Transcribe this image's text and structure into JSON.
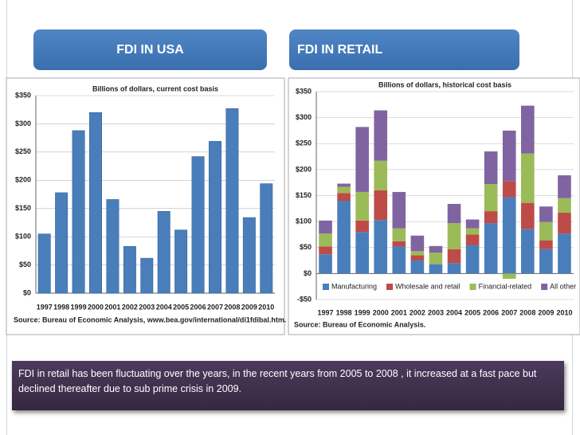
{
  "chart_data": [
    {
      "type": "bar",
      "title": "FDI IN USA",
      "subtitle": "Billions of dollars, current cost basis",
      "source": "Source: Bureau of Economic Analysis, www.bea.gov/international/di1fdibal.htm.",
      "categories": [
        "1997",
        "1998",
        "1999",
        "2000",
        "2001",
        "2002",
        "2003",
        "2004",
        "2005",
        "2006",
        "2007",
        "2008",
        "2009",
        "2010"
      ],
      "values": [
        105,
        178,
        288,
        320,
        166,
        83,
        62,
        145,
        112,
        242,
        269,
        327,
        134,
        194
      ],
      "color": "#4a7ebb",
      "ylim": [
        0,
        350
      ],
      "yticks": [
        {
          "value": 0,
          "label": "$0"
        },
        {
          "value": 50,
          "label": "$50"
        },
        {
          "value": 100,
          "label": "$100"
        },
        {
          "value": 150,
          "label": "$150"
        },
        {
          "value": 200,
          "label": "$200"
        },
        {
          "value": 250,
          "label": "$250"
        },
        {
          "value": 300,
          "label": "$300"
        },
        {
          "value": 350,
          "label": "$350"
        }
      ],
      "grid": true
    },
    {
      "type": "stacked_bar",
      "title": "FDI IN RETAIL",
      "subtitle": "Billions of dollars, historical cost basis",
      "source": "Source: Bureau of Economic Analysis.",
      "categories": [
        "1997",
        "1998",
        "1999",
        "2000",
        "2001",
        "2002",
        "2003",
        "2004",
        "2005",
        "2006",
        "2007",
        "2008",
        "2009",
        "2010"
      ],
      "series": [
        {
          "name": "Manufacturing",
          "color": "#4a7ebb",
          "values": [
            37,
            140,
            80,
            103,
            52,
            25,
            18,
            20,
            55,
            97,
            147,
            86,
            47,
            77
          ]
        },
        {
          "name": "Wholesale and retail",
          "color": "#be4b48",
          "values": [
            15,
            15,
            22,
            57,
            10,
            10,
            0,
            27,
            20,
            23,
            31,
            50,
            17,
            40
          ]
        },
        {
          "name": "Financial-related",
          "color": "#9bbb59",
          "values": [
            25,
            12,
            55,
            57,
            25,
            8,
            22,
            50,
            12,
            52,
            -10,
            95,
            35,
            28
          ]
        },
        {
          "name": "All other",
          "color": "#8064a2",
          "values": [
            25,
            6,
            125,
            97,
            70,
            30,
            13,
            37,
            17,
            63,
            97,
            92,
            30,
            44
          ]
        }
      ],
      "ylim": [
        -50,
        350
      ],
      "yticks": [
        {
          "value": -50,
          "label": "-$50"
        },
        {
          "value": 0,
          "label": "$0"
        },
        {
          "value": 50,
          "label": "$50"
        },
        {
          "value": 100,
          "label": "$100"
        },
        {
          "value": 150,
          "label": "$150"
        },
        {
          "value": 200,
          "label": "$200"
        },
        {
          "value": 250,
          "label": "$250"
        },
        {
          "value": 300,
          "label": "$300"
        },
        {
          "value": 350,
          "label": "$350"
        }
      ],
      "grid": true,
      "legend": "bottom"
    }
  ],
  "caption": "FDI in retail has been fluctuating over the years, in the recent years from 2005 to 2008 , it increased at a fast pace but declined thereafter due to sub prime crisis in 2009."
}
